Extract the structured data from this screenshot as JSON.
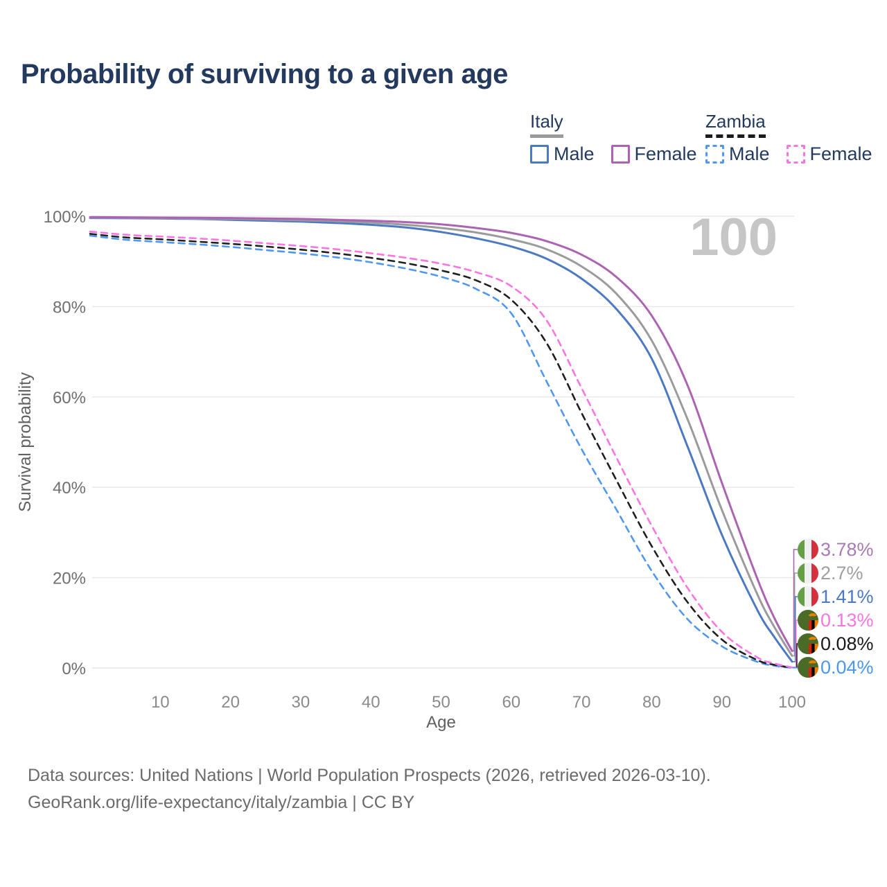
{
  "title": "Probability of surviving to a given age",
  "watermark_label": "100",
  "legend": {
    "groups": [
      {
        "label": "Italy",
        "line_style": "solid",
        "items": [
          {
            "label": "Male",
            "color": "#4b79c2"
          },
          {
            "label": "Female",
            "color": "#ac63b3"
          }
        ]
      },
      {
        "label": "Zambia",
        "line_style": "dashed",
        "items": [
          {
            "label": "Male",
            "color": "#4f97f0"
          },
          {
            "label": "Female",
            "color": "#fb74e2"
          }
        ]
      }
    ]
  },
  "chart_data": {
    "type": "line",
    "title": "Probability of surviving to a given age",
    "xlabel": "Age",
    "ylabel": "Survival probability",
    "xlim": [
      0,
      100
    ],
    "ylim": [
      0,
      100
    ],
    "grid": "horizontal-only",
    "gridline_color": "#e7e7e7",
    "x_ticks": [
      10,
      20,
      30,
      40,
      50,
      60,
      70,
      80,
      90,
      100
    ],
    "y_ticks": [
      {
        "value": 0,
        "label": "0%"
      },
      {
        "value": 20,
        "label": "20%"
      },
      {
        "value": 40,
        "label": "40%"
      },
      {
        "value": 60,
        "label": "60%"
      },
      {
        "value": 80,
        "label": "80%"
      },
      {
        "value": 100,
        "label": "100%"
      }
    ],
    "legend_position": "top-right",
    "series": [
      {
        "id": "italy-female",
        "country": "Italy",
        "sex": "Female",
        "style": "solid",
        "color": "#ac63b3",
        "end_label": {
          "text": "3.78%",
          "color": "#a87bb5",
          "flag": "italy"
        },
        "points": [
          [
            0,
            99.8
          ],
          [
            5,
            99.75
          ],
          [
            10,
            99.7
          ],
          [
            15,
            99.65
          ],
          [
            20,
            99.6
          ],
          [
            25,
            99.5
          ],
          [
            30,
            99.4
          ],
          [
            35,
            99.2
          ],
          [
            40,
            99.0
          ],
          [
            45,
            98.7
          ],
          [
            50,
            98.2
          ],
          [
            55,
            97.4
          ],
          [
            60,
            96.3
          ],
          [
            65,
            94.5
          ],
          [
            70,
            91.5
          ],
          [
            75,
            86.5
          ],
          [
            80,
            78
          ],
          [
            85,
            63
          ],
          [
            90,
            41
          ],
          [
            95,
            20
          ],
          [
            97.5,
            11
          ],
          [
            100,
            3.78
          ]
        ]
      },
      {
        "id": "italy-both",
        "country": "Italy",
        "sex": "Both sexes",
        "style": "solid",
        "color": "#9b9b9b",
        "end_label": {
          "text": "2.7%",
          "color": "#a0a0a0",
          "flag": "italy"
        },
        "points": [
          [
            0,
            99.7
          ],
          [
            5,
            99.65
          ],
          [
            10,
            99.6
          ],
          [
            15,
            99.5
          ],
          [
            20,
            99.4
          ],
          [
            25,
            99.3
          ],
          [
            30,
            99.1
          ],
          [
            35,
            98.9
          ],
          [
            40,
            98.6
          ],
          [
            45,
            98.1
          ],
          [
            50,
            97.4
          ],
          [
            55,
            96.4
          ],
          [
            60,
            94.9
          ],
          [
            65,
            92.7
          ],
          [
            70,
            88.9
          ],
          [
            75,
            82.8
          ],
          [
            80,
            72.5
          ],
          [
            85,
            55.5
          ],
          [
            90,
            35
          ],
          [
            95,
            16.5
          ],
          [
            97.5,
            9
          ],
          [
            100,
            2.7
          ]
        ]
      },
      {
        "id": "italy-male",
        "country": "Italy",
        "sex": "Male",
        "style": "solid",
        "color": "#4b79c2",
        "end_label": {
          "text": "1.41%",
          "color": "#4b79c7",
          "flag": "italy"
        },
        "points": [
          [
            0,
            99.6
          ],
          [
            5,
            99.55
          ],
          [
            10,
            99.5
          ],
          [
            15,
            99.4
          ],
          [
            20,
            99.2
          ],
          [
            25,
            99.0
          ],
          [
            30,
            98.8
          ],
          [
            35,
            98.5
          ],
          [
            40,
            98.1
          ],
          [
            45,
            97.5
          ],
          [
            50,
            96.5
          ],
          [
            55,
            95.1
          ],
          [
            60,
            93.3
          ],
          [
            65,
            90.6
          ],
          [
            70,
            86.2
          ],
          [
            75,
            79.4
          ],
          [
            80,
            68.5
          ],
          [
            85,
            49.5
          ],
          [
            90,
            29.5
          ],
          [
            95,
            13
          ],
          [
            97.5,
            6.8
          ],
          [
            100,
            1.41
          ]
        ]
      },
      {
        "id": "zambia-female",
        "country": "Zambia",
        "sex": "Female",
        "style": "dashed",
        "color": "#fb74e2",
        "end_label": {
          "text": "0.13%",
          "color": "#fb74e2",
          "flag": "zambia"
        },
        "points": [
          [
            0,
            96.6
          ],
          [
            5,
            95.9
          ],
          [
            10,
            95.5
          ],
          [
            15,
            95.1
          ],
          [
            20,
            94.6
          ],
          [
            25,
            94.0
          ],
          [
            30,
            93.4
          ],
          [
            35,
            92.7
          ],
          [
            40,
            91.8
          ],
          [
            45,
            90.8
          ],
          [
            50,
            89.5
          ],
          [
            55,
            87.6
          ],
          [
            60,
            84.5
          ],
          [
            65,
            77
          ],
          [
            70,
            62
          ],
          [
            75,
            46.5
          ],
          [
            80,
            31.5
          ],
          [
            85,
            18
          ],
          [
            90,
            8
          ],
          [
            95,
            2.4
          ],
          [
            97.5,
            1.0
          ],
          [
            100,
            0.13
          ]
        ]
      },
      {
        "id": "zambia-both",
        "country": "Zambia",
        "sex": "Both sexes",
        "style": "dashed",
        "color": "#1f1f1f",
        "end_label": {
          "text": "0.08%",
          "color": "#1a1a1a",
          "flag": "zambia"
        },
        "points": [
          [
            0,
            96.1
          ],
          [
            5,
            95.3
          ],
          [
            10,
            94.9
          ],
          [
            15,
            94.4
          ],
          [
            20,
            93.9
          ],
          [
            25,
            93.3
          ],
          [
            30,
            92.6
          ],
          [
            35,
            91.8
          ],
          [
            40,
            90.8
          ],
          [
            45,
            89.6
          ],
          [
            50,
            88.0
          ],
          [
            55,
            85.8
          ],
          [
            60,
            81.5
          ],
          [
            65,
            72
          ],
          [
            70,
            56.5
          ],
          [
            75,
            41.5
          ],
          [
            80,
            27
          ],
          [
            85,
            14.8
          ],
          [
            90,
            6.3
          ],
          [
            95,
            1.8
          ],
          [
            97.5,
            0.7
          ],
          [
            100,
            0.08
          ]
        ]
      },
      {
        "id": "zambia-male",
        "country": "Zambia",
        "sex": "Male",
        "style": "dashed",
        "color": "#4f97f0",
        "end_label": {
          "text": "0.04%",
          "color": "#4a97ef",
          "flag": "zambia"
        },
        "points": [
          [
            0,
            95.7
          ],
          [
            5,
            94.8
          ],
          [
            10,
            94.3
          ],
          [
            15,
            93.8
          ],
          [
            20,
            93.2
          ],
          [
            25,
            92.5
          ],
          [
            30,
            91.8
          ],
          [
            35,
            90.9
          ],
          [
            40,
            89.8
          ],
          [
            45,
            88.4
          ],
          [
            50,
            86.6
          ],
          [
            55,
            83.9
          ],
          [
            60,
            78.5
          ],
          [
            65,
            63.5
          ],
          [
            70,
            48.5
          ],
          [
            75,
            35
          ],
          [
            80,
            21.5
          ],
          [
            85,
            11
          ],
          [
            90,
            4.8
          ],
          [
            95,
            1.4
          ],
          [
            97.5,
            0.5
          ],
          [
            100,
            0.04
          ]
        ]
      }
    ],
    "flag_colors": {
      "italy": {
        "green": "#669e45",
        "white": "#f0f0f0",
        "red": "#d5303e"
      },
      "zambia": {
        "green": "#4a6b28",
        "red": "#de2010",
        "black": "#000000",
        "orange": "#ef7d00"
      }
    }
  },
  "footer": {
    "line1": "Data sources: United Nations | World Population Prospects (2026, retrieved 2026-03-10).",
    "line2": "GeoRank.org/life-expectancy/italy/zambia | CC BY"
  }
}
